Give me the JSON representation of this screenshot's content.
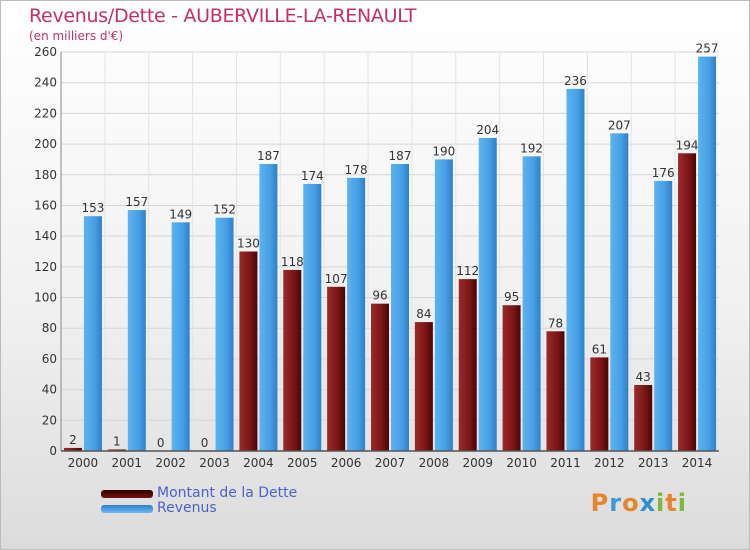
{
  "title": "Revenus/Dette - AUBERVILLE-LA-RENAULT",
  "subtitle": "(en milliers d'€)",
  "logo_text": "Proxiti",
  "colors": {
    "dette": "#8a1c1c",
    "revenus": "#4aa3e8",
    "title": "#c0306a",
    "legend_text": "#4b63c6"
  },
  "legend": [
    {
      "label": "Montant de la Dette",
      "color": "#6b0c0c"
    },
    {
      "label": "Revenus",
      "color": "#4aa3e8"
    }
  ],
  "chart_data": {
    "type": "bar",
    "categories": [
      "2000",
      "2001",
      "2002",
      "2003",
      "2004",
      "2005",
      "2006",
      "2007",
      "2008",
      "2009",
      "2010",
      "2011",
      "2012",
      "2013",
      "2014"
    ],
    "series": [
      {
        "name": "Montant de la Dette",
        "values": [
          2,
          1,
          0,
          0,
          130,
          118,
          107,
          96,
          84,
          112,
          95,
          78,
          61,
          43,
          194
        ]
      },
      {
        "name": "Revenus",
        "values": [
          153,
          157,
          149,
          152,
          187,
          174,
          178,
          187,
          190,
          204,
          192,
          236,
          207,
          176,
          257
        ]
      }
    ],
    "title": "Revenus/Dette - AUBERVILLE-LA-RENAULT",
    "ylabel": "(en milliers d'€)",
    "ylim": [
      0,
      260
    ],
    "yticks": [
      0,
      20,
      40,
      60,
      80,
      100,
      120,
      140,
      160,
      180,
      200,
      220,
      240,
      260
    ],
    "grid": true,
    "legend_position": "bottom-left"
  }
}
